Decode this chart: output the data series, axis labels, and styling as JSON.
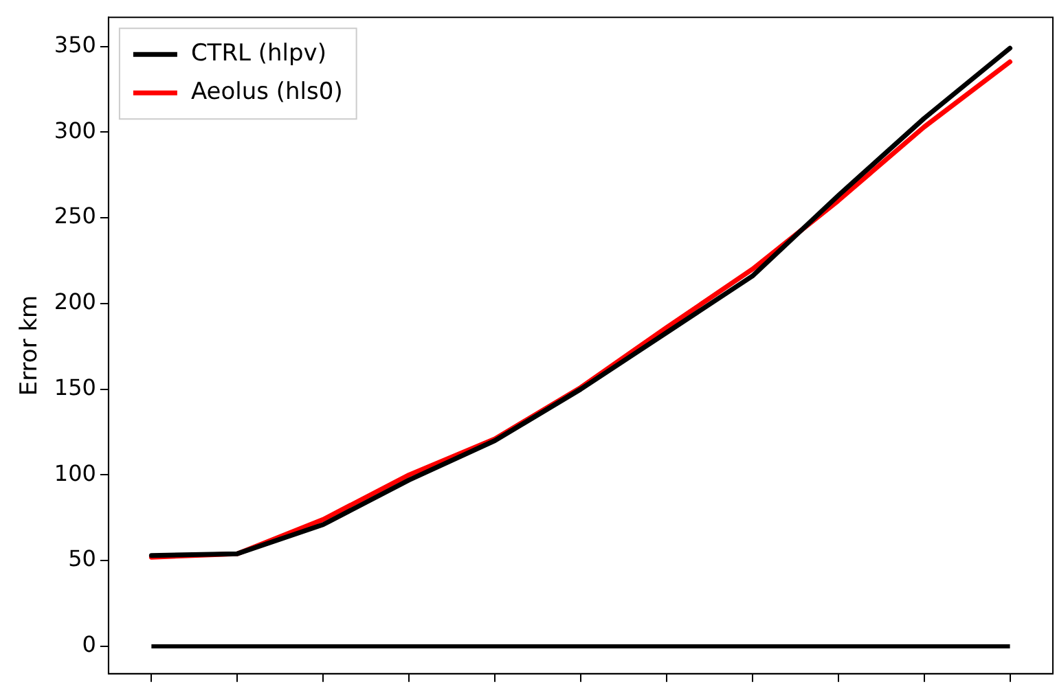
{
  "chart_data": {
    "type": "line",
    "ylabel": "Error km",
    "categories": [
      null,
      null,
      null,
      null,
      null,
      null,
      null,
      null,
      null,
      null,
      null
    ],
    "ylim": [
      -16,
      367
    ],
    "yticks": [
      0,
      50,
      100,
      150,
      200,
      250,
      300,
      350
    ],
    "series": [
      {
        "name": "CTRL (hlpv)",
        "color": "#000000",
        "values": [
          53,
          54,
          71,
          97,
          120,
          150,
          183,
          216,
          263,
          308,
          349
        ]
      },
      {
        "name": "Aeolus (hls0)",
        "color": "#ff0000",
        "values": [
          52,
          54,
          74,
          100,
          121,
          151,
          186,
          220,
          260,
          303,
          341
        ]
      }
    ],
    "ref_lines": [
      {
        "axis": "y",
        "value": 0,
        "color": "#000000"
      }
    ],
    "legend": "top left",
    "grid": false,
    "marker": "none",
    "line_style": "solid",
    "tick_labels": "y"
  }
}
